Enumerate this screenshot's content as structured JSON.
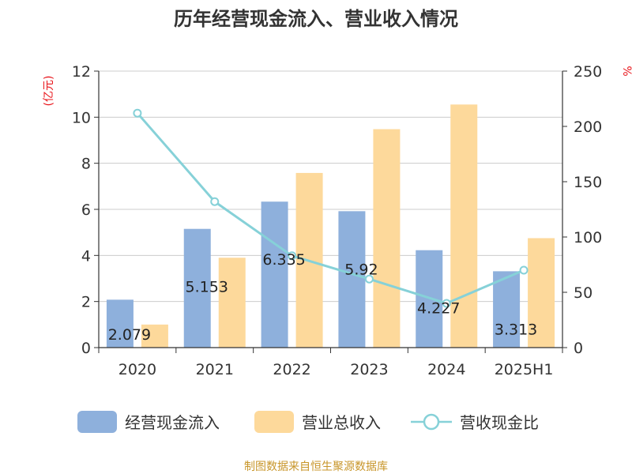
{
  "chart_data": {
    "type": "bar",
    "title": "历年经营现金流入、营业收入情况",
    "categories": [
      "2020",
      "2021",
      "2022",
      "2023",
      "2024",
      "2025H1"
    ],
    "y_left": {
      "label": "(亿元)",
      "lim": [
        0,
        12
      ],
      "ticks": [
        0,
        2,
        4,
        6,
        8,
        10,
        12
      ]
    },
    "y_right": {
      "label": "%",
      "lim": [
        0,
        250
      ],
      "ticks": [
        0,
        50,
        100,
        150,
        200,
        250
      ]
    },
    "grid": true,
    "legend_position": "bottom",
    "series": [
      {
        "name": "经营现金流入",
        "kind": "bar",
        "axis": "left",
        "color": "#8eb0dc",
        "values": [
          2.079,
          5.153,
          6.335,
          5.92,
          4.227,
          3.313
        ],
        "labels": [
          "2.079",
          "5.153",
          "6.335",
          "5.92",
          "4.227",
          "3.313"
        ]
      },
      {
        "name": "营业总收入",
        "kind": "bar",
        "axis": "left",
        "color": "#fdd99b",
        "values": [
          1.0,
          3.9,
          7.58,
          9.48,
          10.55,
          4.75
        ]
      },
      {
        "name": "营收现金比",
        "kind": "line",
        "axis": "right",
        "color": "#86d1d8",
        "values": [
          212,
          132,
          83,
          62,
          40,
          70
        ]
      }
    ],
    "source_note": "制图数据来自恒生聚源数据库"
  }
}
